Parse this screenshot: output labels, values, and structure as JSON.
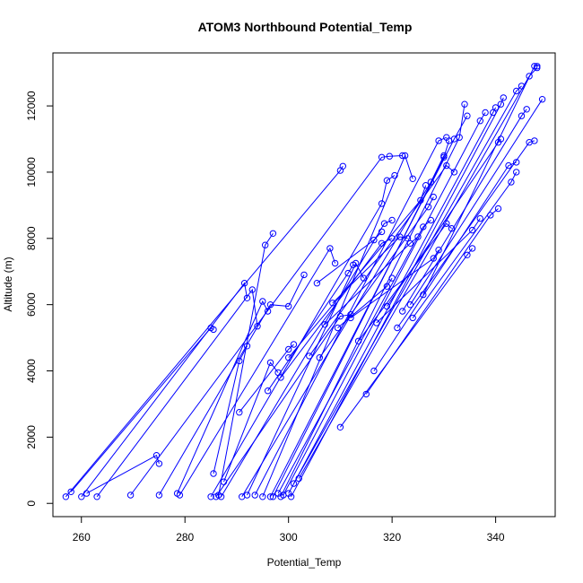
{
  "chart_data": {
    "type": "line",
    "title": "ATOM3 Northbound Potential_Temp",
    "xlabel": "Potential_Temp",
    "ylabel": "Altitude (m)",
    "xlim": [
      254.5,
      351.5
    ],
    "ylim": [
      -400,
      13600
    ],
    "x_ticks": [
      "260",
      "280",
      "300",
      "320",
      "340"
    ],
    "y_ticks": [
      "0",
      "2000",
      "4000",
      "6000",
      "8000",
      "10000",
      "12000"
    ],
    "grid": false,
    "legend": "none",
    "color": "#0000ff",
    "series": [
      {
        "points": [
          [
            257.0,
            200
          ],
          [
            310.0,
            10050
          ],
          [
            310.5,
            10180
          ]
        ]
      },
      {
        "points": [
          [
            258.0,
            350
          ],
          [
            285.0,
            5300
          ],
          [
            285.5,
            5250
          ]
        ]
      },
      {
        "points": [
          [
            260.0,
            200
          ],
          [
            291.5,
            6650
          ],
          [
            292.0,
            6200
          ]
        ]
      },
      {
        "points": [
          [
            261.0,
            300
          ],
          [
            274.5,
            1450
          ],
          [
            275.0,
            1200
          ]
        ]
      },
      {
        "points": [
          [
            263.0,
            200
          ],
          [
            293.0,
            6450
          ],
          [
            294.0,
            5350
          ]
        ]
      },
      {
        "points": [
          [
            269.5,
            250
          ],
          [
            318.0,
            10450
          ],
          [
            319.5,
            10480
          ],
          [
            322.0,
            10500
          ]
        ]
      },
      {
        "points": [
          [
            275.0,
            250
          ],
          [
            296.5,
            6000
          ],
          [
            300.0,
            5950
          ],
          [
            303.0,
            6900
          ]
        ]
      },
      {
        "points": [
          [
            278.5,
            300
          ],
          [
            295.0,
            6100
          ],
          [
            296.0,
            5800
          ]
        ]
      },
      {
        "points": [
          [
            279.0,
            250
          ],
          [
            308.0,
            7700
          ],
          [
            309.0,
            7250
          ]
        ]
      },
      {
        "points": [
          [
            285.0,
            200
          ],
          [
            318.0,
            9050
          ],
          [
            319.0,
            9750
          ],
          [
            320.5,
            9900
          ]
        ]
      },
      {
        "points": [
          [
            285.5,
            900
          ],
          [
            290.5,
            4300
          ],
          [
            292.0,
            4750
          ]
        ]
      },
      {
        "points": [
          [
            286.0,
            200
          ],
          [
            310.0,
            5650
          ],
          [
            312.0,
            5700
          ]
        ]
      },
      {
        "points": [
          [
            286.5,
            250
          ],
          [
            295.5,
            7800
          ],
          [
            297.0,
            8150
          ]
        ]
      },
      {
        "points": [
          [
            287.0,
            200
          ],
          [
            318.5,
            8450
          ],
          [
            320.0,
            8550
          ]
        ]
      },
      {
        "points": [
          [
            287.5,
            650
          ],
          [
            296.5,
            4250
          ],
          [
            298.0,
            3950
          ]
        ]
      },
      {
        "points": [
          [
            291.0,
            200
          ],
          [
            327.5,
            9700
          ],
          [
            330.0,
            10500
          ]
        ]
      },
      {
        "points": [
          [
            292.0,
            250
          ],
          [
            313.0,
            7250
          ],
          [
            314.5,
            6800
          ]
        ]
      },
      {
        "points": [
          [
            293.5,
            250
          ],
          [
            329.0,
            10950
          ],
          [
            330.5,
            11050
          ]
        ]
      },
      {
        "points": [
          [
            295.0,
            200
          ],
          [
            322.5,
            10500
          ],
          [
            324.0,
            9800
          ]
        ]
      },
      {
        "points": [
          [
            296.5,
            200
          ],
          [
            332.0,
            11000
          ],
          [
            334.5,
            11700
          ]
        ]
      },
      {
        "points": [
          [
            297.0,
            200
          ],
          [
            330.0,
            10450
          ],
          [
            331.0,
            10950
          ]
        ]
      },
      {
        "points": [
          [
            298.0,
            300
          ],
          [
            326.0,
            8350
          ],
          [
            327.5,
            8550
          ]
        ]
      },
      {
        "points": [
          [
            298.5,
            200
          ],
          [
            333.0,
            11050
          ],
          [
            334.0,
            12050
          ]
        ]
      },
      {
        "points": [
          [
            299.0,
            250
          ],
          [
            337.0,
            11550
          ],
          [
            338.0,
            11800
          ]
        ]
      },
      {
        "points": [
          [
            300.0,
            300
          ],
          [
            339.5,
            11800
          ],
          [
            340.0,
            11950
          ]
        ]
      },
      {
        "points": [
          [
            300.5,
            200
          ],
          [
            341.0,
            12050
          ],
          [
            341.5,
            12250
          ]
        ]
      },
      {
        "points": [
          [
            301.0,
            600
          ],
          [
            344.0,
            12450
          ],
          [
            345.0,
            12600
          ]
        ]
      },
      {
        "points": [
          [
            302.0,
            750
          ],
          [
            346.5,
            12900
          ],
          [
            348.0,
            13150
          ]
        ]
      },
      {
        "points": [
          [
            290.5,
            2750
          ],
          [
            300.0,
            4650
          ],
          [
            301.0,
            4800
          ]
        ]
      },
      {
        "points": [
          [
            296.0,
            3400
          ],
          [
            311.5,
            6950
          ],
          [
            312.5,
            7200
          ]
        ]
      },
      {
        "points": [
          [
            298.5,
            3800
          ],
          [
            318.0,
            7850
          ],
          [
            320.0,
            8000
          ]
        ]
      },
      {
        "points": [
          [
            300.0,
            4400
          ],
          [
            325.5,
            9150
          ],
          [
            326.5,
            9600
          ]
        ]
      },
      {
        "points": [
          [
            304.0,
            4450
          ],
          [
            330.5,
            10200
          ],
          [
            332.0,
            10000
          ]
        ]
      },
      {
        "points": [
          [
            305.5,
            6650
          ],
          [
            316.5,
            7950
          ],
          [
            318.0,
            8200
          ]
        ]
      },
      {
        "points": [
          [
            306.0,
            4400
          ],
          [
            327.0,
            8950
          ],
          [
            328.0,
            9250
          ]
        ]
      },
      {
        "points": [
          [
            307.0,
            5400
          ],
          [
            323.5,
            7850
          ],
          [
            325.0,
            8050
          ]
        ]
      },
      {
        "points": [
          [
            308.5,
            6050
          ],
          [
            321.5,
            8050
          ],
          [
            323.0,
            8000
          ]
        ]
      },
      {
        "points": [
          [
            309.5,
            5300
          ],
          [
            319.0,
            6550
          ],
          [
            320.0,
            6800
          ]
        ]
      },
      {
        "points": [
          [
            310.0,
            2300
          ],
          [
            334.5,
            7500
          ],
          [
            335.5,
            7700
          ]
        ]
      },
      {
        "points": [
          [
            312.0,
            5600
          ],
          [
            328.0,
            7400
          ],
          [
            329.0,
            7650
          ]
        ]
      },
      {
        "points": [
          [
            313.5,
            4900
          ],
          [
            330.5,
            8450
          ],
          [
            331.5,
            8300
          ]
        ]
      },
      {
        "points": [
          [
            315.0,
            3300
          ],
          [
            339.0,
            8700
          ],
          [
            340.5,
            8900
          ]
        ]
      },
      {
        "points": [
          [
            316.5,
            4000
          ],
          [
            342.5,
            10200
          ],
          [
            344.0,
            10300
          ]
        ]
      },
      {
        "points": [
          [
            317.0,
            5450
          ],
          [
            335.5,
            8250
          ],
          [
            337.0,
            8600
          ]
        ]
      },
      {
        "points": [
          [
            319.0,
            5950
          ],
          [
            340.5,
            10900
          ],
          [
            341.0,
            11000
          ]
        ]
      },
      {
        "points": [
          [
            321.0,
            5300
          ],
          [
            346.5,
            10900
          ],
          [
            347.5,
            10950
          ]
        ]
      },
      {
        "points": [
          [
            322.0,
            5800
          ],
          [
            345.0,
            11700
          ],
          [
            346.0,
            11900
          ]
        ]
      },
      {
        "points": [
          [
            323.5,
            6000
          ],
          [
            349.0,
            12200
          ]
        ]
      },
      {
        "points": [
          [
            324.0,
            5600
          ],
          [
            343.0,
            9700
          ],
          [
            344.0,
            10000
          ]
        ]
      },
      {
        "points": [
          [
            326.0,
            6300
          ],
          [
            347.5,
            13200
          ],
          [
            348.0,
            13200
          ]
        ]
      }
    ]
  }
}
